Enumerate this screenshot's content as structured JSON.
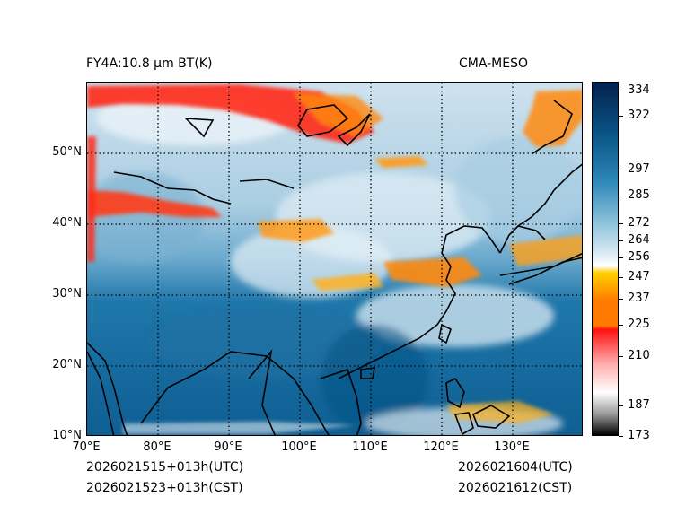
{
  "header": {
    "left_title": "FY4A:10.8 μm BT(K)",
    "right_title": "CMA-MESO"
  },
  "footer": {
    "left_line1": "2026021515+013h(UTC)",
    "left_line2": "2026021523+013h(CST)",
    "right_line1": "2026021604(UTC)",
    "right_line2": "2026021612(CST)"
  },
  "map": {
    "lon_range": [
      70,
      140
    ],
    "lat_range": [
      10,
      60
    ],
    "lon_ticks": [
      "70°E",
      "80°E",
      "90°E",
      "100°E",
      "110°E",
      "120°E",
      "130°E"
    ],
    "lat_ticks": [
      "10°N",
      "20°N",
      "30°N",
      "40°N",
      "50°N"
    ],
    "lon_values": [
      70,
      80,
      90,
      100,
      110,
      120,
      130
    ],
    "lat_values": [
      10,
      20,
      30,
      40,
      50
    ]
  },
  "colorbar": {
    "min": 173,
    "max": 338,
    "tick_values": [
      334,
      322,
      297,
      285,
      272,
      264,
      256,
      247,
      237,
      225,
      210,
      187,
      173
    ],
    "tick_labels": [
      "334",
      "322",
      "297",
      "285",
      "272",
      "264",
      "256",
      "247",
      "237",
      "225",
      "210",
      "187",
      "173"
    ],
    "colors": {
      "black": "#000000",
      "gray": "#9a9a9a",
      "white": "#ffffff",
      "pink": "#ffb0b0",
      "red": "#ff1010",
      "orange": "#ff7a00",
      "yellow": "#ffd000",
      "pale_blue": "#d6e8f2",
      "light_blue": "#8fc3dc",
      "mid_blue": "#2d87b7",
      "deep_blue": "#0a5688",
      "navy": "#04214f"
    }
  }
}
